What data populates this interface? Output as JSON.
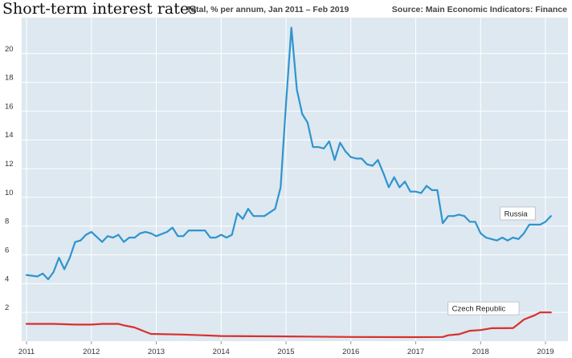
{
  "header": {
    "title": "Short-term interest rates",
    "subtitle": "Total, % per annum, Jan 2011 – Feb 2019",
    "source": "Source: Main Economic Indicators: Finance"
  },
  "chart_data": {
    "type": "line",
    "title": "Short-term interest rates",
    "subtitle": "Total, % per annum, Jan 2011 – Feb 2019",
    "source": "Source: Main Economic Indicators: Finance",
    "xlabel": "",
    "ylabel": "",
    "x_ticks": [
      "2011",
      "2012",
      "2013",
      "2014",
      "2015",
      "2016",
      "2017",
      "2018",
      "2019"
    ],
    "y_ticks": [
      "2",
      "4",
      "6",
      "8",
      "10",
      "12",
      "14",
      "16",
      "18",
      "20"
    ],
    "xlim": [
      "2011-01",
      "2019-02"
    ],
    "ylim": [
      0,
      22.5
    ],
    "grid": true,
    "colors": {
      "background": "#dde8f0",
      "grid": "#ffffff",
      "Russia": "#2f94cf",
      "Czech Republic": "#d9302c"
    },
    "series": [
      {
        "name": "Russia",
        "color": "#2f94cf",
        "points": [
          [
            "2011-01",
            4.6
          ],
          [
            "2011-03",
            4.5
          ],
          [
            "2011-04",
            4.7
          ],
          [
            "2011-05",
            4.3
          ],
          [
            "2011-06",
            4.8
          ],
          [
            "2011-07",
            5.8
          ],
          [
            "2011-08",
            5.0
          ],
          [
            "2011-09",
            5.8
          ],
          [
            "2011-10",
            6.9
          ],
          [
            "2011-11",
            7.0
          ],
          [
            "2011-12",
            7.4
          ],
          [
            "2012-01",
            7.6
          ],
          [
            "2012-03",
            6.9
          ],
          [
            "2012-04",
            7.3
          ],
          [
            "2012-05",
            7.2
          ],
          [
            "2012-06",
            7.4
          ],
          [
            "2012-07",
            6.9
          ],
          [
            "2012-08",
            7.2
          ],
          [
            "2012-09",
            7.2
          ],
          [
            "2012-10",
            7.5
          ],
          [
            "2012-11",
            7.6
          ],
          [
            "2012-12",
            7.5
          ],
          [
            "2013-01",
            7.3
          ],
          [
            "2013-03",
            7.6
          ],
          [
            "2013-04",
            7.9
          ],
          [
            "2013-05",
            7.3
          ],
          [
            "2013-06",
            7.3
          ],
          [
            "2013-07",
            7.7
          ],
          [
            "2013-10",
            7.7
          ],
          [
            "2013-11",
            7.2
          ],
          [
            "2013-12",
            7.2
          ],
          [
            "2014-01",
            7.4
          ],
          [
            "2014-02",
            7.2
          ],
          [
            "2014-03",
            7.4
          ],
          [
            "2014-04",
            8.9
          ],
          [
            "2014-05",
            8.5
          ],
          [
            "2014-06",
            9.2
          ],
          [
            "2014-07",
            8.7
          ],
          [
            "2014-09",
            8.7
          ],
          [
            "2014-11",
            9.2
          ],
          [
            "2014-12",
            10.7
          ],
          [
            "2015-01",
            16.5
          ],
          [
            "2015-02",
            21.8
          ],
          [
            "2015-03",
            17.5
          ],
          [
            "2015-04",
            15.8
          ],
          [
            "2015-05",
            15.2
          ],
          [
            "2015-06",
            13.5
          ],
          [
            "2015-07",
            13.5
          ],
          [
            "2015-08",
            13.4
          ],
          [
            "2015-09",
            13.9
          ],
          [
            "2015-10",
            12.6
          ],
          [
            "2015-11",
            13.8
          ],
          [
            "2015-12",
            13.2
          ],
          [
            "2016-01",
            12.8
          ],
          [
            "2016-02",
            12.7
          ],
          [
            "2016-03",
            12.7
          ],
          [
            "2016-04",
            12.3
          ],
          [
            "2016-05",
            12.2
          ],
          [
            "2016-06",
            12.6
          ],
          [
            "2016-07",
            11.7
          ],
          [
            "2016-08",
            10.7
          ],
          [
            "2016-09",
            11.4
          ],
          [
            "2016-10",
            10.7
          ],
          [
            "2016-11",
            11.1
          ],
          [
            "2016-12",
            10.4
          ],
          [
            "2017-01",
            10.4
          ],
          [
            "2017-02",
            10.3
          ],
          [
            "2017-03",
            10.8
          ],
          [
            "2017-04",
            10.5
          ],
          [
            "2017-05",
            10.5
          ],
          [
            "2017-06",
            8.2
          ],
          [
            "2017-07",
            8.7
          ],
          [
            "2017-08",
            8.7
          ],
          [
            "2017-09",
            8.8
          ],
          [
            "2017-10",
            8.7
          ],
          [
            "2017-11",
            8.3
          ],
          [
            "2017-12",
            8.3
          ],
          [
            "2018-01",
            7.5
          ],
          [
            "2018-02",
            7.2
          ],
          [
            "2018-03",
            7.1
          ],
          [
            "2018-04",
            7.0
          ],
          [
            "2018-05",
            7.2
          ],
          [
            "2018-06",
            7.0
          ],
          [
            "2018-07",
            7.2
          ],
          [
            "2018-08",
            7.1
          ],
          [
            "2018-09",
            7.5
          ],
          [
            "2018-10",
            8.1
          ],
          [
            "2018-11",
            8.1
          ],
          [
            "2018-12",
            8.1
          ],
          [
            "2019-01",
            8.3
          ],
          [
            "2019-02",
            8.7
          ]
        ]
      },
      {
        "name": "Czech Republic",
        "color": "#d9302c",
        "points": [
          [
            "2011-01",
            1.2
          ],
          [
            "2011-06",
            1.2
          ],
          [
            "2011-10",
            1.15
          ],
          [
            "2012-01",
            1.15
          ],
          [
            "2012-03",
            1.2
          ],
          [
            "2012-06",
            1.2
          ],
          [
            "2012-07",
            1.1
          ],
          [
            "2012-09",
            0.95
          ],
          [
            "2012-11",
            0.65
          ],
          [
            "2012-12",
            0.5
          ],
          [
            "2013-06",
            0.46
          ],
          [
            "2014-01",
            0.36
          ],
          [
            "2015-01",
            0.33
          ],
          [
            "2016-01",
            0.29
          ],
          [
            "2017-01",
            0.28
          ],
          [
            "2017-06",
            0.29
          ],
          [
            "2017-07",
            0.41
          ],
          [
            "2017-09",
            0.48
          ],
          [
            "2017-11",
            0.72
          ],
          [
            "2018-01",
            0.77
          ],
          [
            "2018-03",
            0.9
          ],
          [
            "2018-07",
            0.91
          ],
          [
            "2018-08",
            1.2
          ],
          [
            "2018-09",
            1.5
          ],
          [
            "2018-10",
            1.65
          ],
          [
            "2018-11",
            1.8
          ],
          [
            "2018-12",
            2.0
          ],
          [
            "2019-01",
            2.0
          ],
          [
            "2019-02",
            2.0
          ]
        ]
      }
    ],
    "annotations": [
      {
        "series": "Russia",
        "text": "Russia",
        "at": "2018-12"
      },
      {
        "series": "Czech Republic",
        "text": "Czech Republic",
        "at": "2018-09"
      }
    ]
  }
}
